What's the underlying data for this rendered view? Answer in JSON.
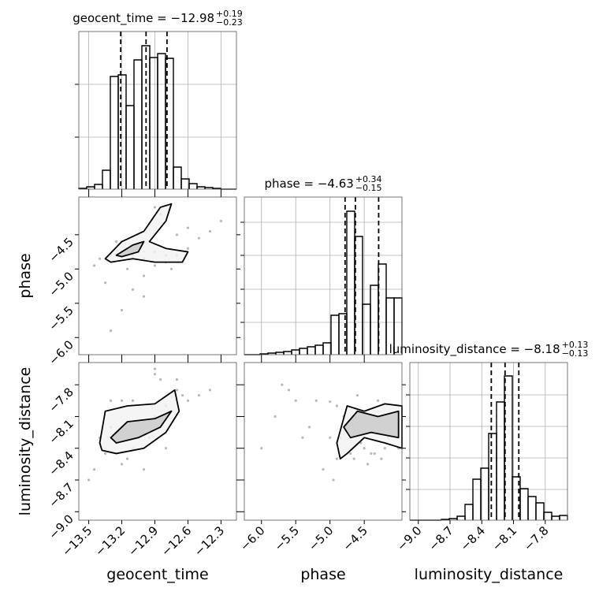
{
  "chart_data": {
    "type": "corner",
    "grid": true,
    "line_color": "#000000",
    "grid_color": "#b0b0b0",
    "scatter_color": "#9a9a9a",
    "contour_fills": [
      "#f2f2f2",
      "#c8c8c8"
    ],
    "parameters": [
      {
        "name": "geocent_time",
        "title": "geocent_time = −12.98",
        "err_plus": "+0.19",
        "err_minus": "−0.23",
        "quantiles": [
          -13.21,
          -12.98,
          -12.79
        ],
        "range": [
          -13.59,
          -12.16
        ],
        "ticks": [
          {
            "value": -13.5,
            "label": "−13.5"
          },
          {
            "value": -13.2,
            "label": "−13.2"
          },
          {
            "value": -12.9,
            "label": "−12.9"
          },
          {
            "value": -12.6,
            "label": "−12.6"
          },
          {
            "value": -12.3,
            "label": "−12.3"
          }
        ],
        "hist": {
          "bins": [
            -13.59,
            -13.5185,
            -13.447,
            -13.3755,
            -13.304,
            -13.2325,
            -13.161,
            -13.0895,
            -13.018,
            -12.9465,
            -12.875,
            -12.8035,
            -12.732,
            -12.6605,
            -12.589,
            -12.5175,
            -12.446,
            -12.3745,
            -12.303,
            -12.2315,
            -12.16
          ],
          "counts": [
            1,
            3,
            6,
            24,
            143,
            145,
            106,
            164,
            182,
            167,
            172,
            166,
            28,
            13,
            7,
            3,
            2,
            1,
            0,
            0
          ],
          "ylim": [
            0,
            200
          ],
          "yticks": [
            66,
            133
          ]
        }
      },
      {
        "name": "phase",
        "title": "phase = −4.63",
        "err_plus": "+0.34",
        "err_minus": "−0.15",
        "quantiles": [
          -4.78,
          -4.63,
          -4.29
        ],
        "range": [
          -6.25,
          -3.95
        ],
        "ticks": [
          {
            "value": -6.0,
            "label": "−6.0"
          },
          {
            "value": -5.5,
            "label": "−5.5"
          },
          {
            "value": -5.0,
            "label": "−5.0"
          },
          {
            "value": -4.5,
            "label": "−4.5"
          }
        ],
        "hist": {
          "bins": [
            -6.25,
            -6.135,
            -6.02,
            -5.905,
            -5.79,
            -5.675,
            -5.56,
            -5.445,
            -5.33,
            -5.215,
            -5.1,
            -4.985,
            -4.87,
            -4.755,
            -4.64,
            -4.525,
            -4.41,
            -4.295,
            -4.18,
            -4.065,
            -3.95
          ],
          "counts": [
            0,
            0,
            1,
            2,
            3,
            4,
            6,
            8,
            10,
            12,
            15,
            50,
            52,
            182,
            150,
            64,
            88,
            115,
            72,
            72
          ],
          "ylim": [
            0,
            200
          ],
          "yticks": [
            41,
            83,
            126,
            168
          ]
        }
      },
      {
        "name": "luminosity_distance",
        "title": "luminosity_distance = −8.18",
        "err_plus": "+0.13",
        "err_minus": "−0.13",
        "quantiles": [
          -8.31,
          -8.18,
          -8.05
        ],
        "range": [
          -9.08,
          -7.59
        ],
        "ticks": [
          {
            "value": -9.0,
            "label": "−9.0"
          },
          {
            "value": -8.7,
            "label": "−8.7"
          },
          {
            "value": -8.4,
            "label": "−8.4"
          },
          {
            "value": -8.1,
            "label": "−8.1"
          },
          {
            "value": -7.8,
            "label": "−7.8"
          }
        ],
        "hist": {
          "bins": [
            -9.08,
            -9.0055,
            -8.931,
            -8.8565,
            -8.782,
            -8.7075,
            -8.633,
            -8.5585,
            -8.484,
            -8.4095,
            -8.335,
            -8.2605,
            -8.186,
            -8.1115,
            -8.037,
            -7.9625,
            -7.888,
            -7.8135,
            -7.739,
            -7.6645,
            -7.59
          ],
          "counts": [
            0,
            0,
            0,
            0,
            1,
            2,
            5,
            20,
            52,
            66,
            110,
            150,
            183,
            55,
            40,
            30,
            22,
            10,
            5,
            6
          ],
          "ylim": [
            0,
            200
          ],
          "yticks": [
            39,
            79,
            119,
            159
          ]
        }
      }
    ],
    "pairs": [
      {
        "scatter": {
          "x": [
            -13.4,
            -13.3,
            -13.2,
            -13.1,
            -13.0,
            -12.9,
            -12.8,
            -13.25,
            -13.05,
            -12.95,
            -12.85,
            -12.9,
            -13.3,
            -13.2,
            -13.1,
            -13.0,
            -12.9,
            -12.8,
            -12.7,
            -12.6,
            -12.5,
            -12.4,
            -12.3,
            -13.35,
            -13.15,
            -12.7,
            -12.6,
            -13.45,
            -13.0,
            -12.75
          ],
          "y": [
            -4.85,
            -4.8,
            -4.75,
            -4.8,
            -4.85,
            -4.75,
            -4.8,
            -4.6,
            -4.5,
            -4.35,
            -4.2,
            -4.1,
            -5.9,
            -5.6,
            -5.3,
            -5.1,
            -4.95,
            -4.9,
            -4.8,
            -4.7,
            -4.55,
            -4.45,
            -4.3,
            -5.2,
            -5.0,
            -4.5,
            -4.4,
            -4.95,
            -5.4,
            -5.0
          ]
        },
        "contours": [
          {
            "x": [
              -13.35,
              -13.2,
              -13.0,
              -12.85,
              -12.75,
              -12.8,
              -12.95,
              -12.8,
              -12.6,
              -12.65,
              -12.9,
              -13.1,
              -13.3
            ],
            "y": [
              -4.85,
              -4.6,
              -4.45,
              -4.1,
              -4.05,
              -4.3,
              -4.6,
              -4.7,
              -4.75,
              -4.9,
              -4.9,
              -4.85,
              -4.9
            ]
          },
          {
            "x": [
              -13.25,
              -13.1,
              -13.0,
              -13.05,
              -13.2
            ],
            "y": [
              -4.8,
              -4.65,
              -4.6,
              -4.75,
              -4.82
            ]
          }
        ]
      },
      {
        "scatter": {
          "x": [
            -13.4,
            -13.3,
            -13.2,
            -13.1,
            -13.0,
            -12.9,
            -12.8,
            -12.7,
            -13.35,
            -13.25,
            -13.15,
            -13.05,
            -12.95,
            -12.85,
            -12.75,
            -12.65,
            -13.45,
            -13.3,
            -13.1,
            -12.9,
            -12.7,
            -12.6,
            -12.5,
            -12.4,
            -13.2,
            -13.0,
            -12.8,
            -12.9,
            -12.85,
            -13.5
          ],
          "y": [
            -8.3,
            -8.2,
            -7.95,
            -8.4,
            -8.25,
            -8.1,
            -8.0,
            -7.85,
            -8.45,
            -8.35,
            -8.5,
            -8.15,
            -8.3,
            -8.2,
            -8.05,
            -7.9,
            -8.6,
            -7.95,
            -7.95,
            -7.7,
            -7.75,
            -7.95,
            -7.9,
            -7.85,
            -8.55,
            -8.6,
            -8.4,
            -7.65,
            -7.75,
            -8.7
          ]
        },
        "contours": [
          {
            "x": [
              -13.4,
              -13.35,
              -13.15,
              -12.9,
              -12.72,
              -12.68,
              -12.8,
              -13.0,
              -13.25,
              -13.38
            ],
            "y": [
              -8.35,
              -8.05,
              -8.0,
              -7.98,
              -7.85,
              -8.05,
              -8.25,
              -8.4,
              -8.45,
              -8.42
            ]
          },
          {
            "x": [
              -13.3,
              -13.15,
              -12.9,
              -12.75,
              -12.85,
              -13.05,
              -13.25
            ],
            "y": [
              -8.3,
              -8.15,
              -8.12,
              -8.05,
              -8.2,
              -8.3,
              -8.35
            ]
          }
        ]
      },
      {
        "scatter": {
          "x": [
            -5.8,
            -5.5,
            -5.3,
            -5.2,
            -5.0,
            -4.9,
            -4.8,
            -4.7,
            -4.6,
            -4.5,
            -4.4,
            -4.3,
            -4.2,
            -4.1,
            -4.0,
            -5.6,
            -5.4,
            -5.1,
            -4.95,
            -4.85,
            -4.65,
            -4.55,
            -4.35,
            -4.25,
            -4.15,
            -6.0,
            -5.7,
            -5.0,
            -4.9,
            -4.45
          ],
          "y": [
            -8.1,
            -7.95,
            -8.2,
            -7.95,
            -7.96,
            -8.5,
            -8.1,
            -8.45,
            -7.9,
            -8.4,
            -8.45,
            -7.95,
            -8.4,
            -8.15,
            -8.4,
            -7.85,
            -8.3,
            -8.6,
            -8.7,
            -8.3,
            -8.5,
            -8.35,
            -8.45,
            -8.5,
            -8.3,
            -8.4,
            -7.8,
            -8.3,
            -8.0,
            -8.55
          ]
        },
        "contours": [
          {
            "x": [
              -4.9,
              -4.75,
              -4.5,
              -4.2,
              -3.95,
              -3.95,
              -4.2,
              -4.5,
              -4.75,
              -4.85
            ],
            "y": [
              -8.35,
              -8.0,
              -8.05,
              -7.98,
              -8.0,
              -8.4,
              -8.35,
              -8.3,
              -8.45,
              -8.5
            ]
          },
          {
            "x": [
              -4.8,
              -4.6,
              -4.3,
              -4.0,
              -4.0,
              -4.4,
              -4.7
            ],
            "y": [
              -8.2,
              -8.05,
              -8.1,
              -8.05,
              -8.3,
              -8.25,
              -8.3
            ]
          }
        ]
      }
    ]
  }
}
